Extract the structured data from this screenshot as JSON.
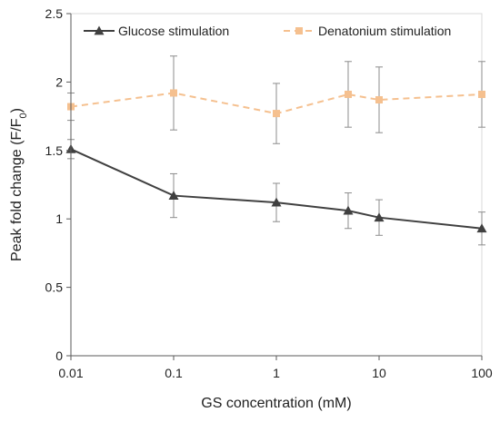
{
  "chart_data": {
    "type": "line",
    "title": "",
    "xlabel": "GS concentration (mM)",
    "ylabel": "Peak fold change (F/F",
    "ylabel_subscript": "0",
    "ylabel_suffix": ")",
    "x_scale": "log",
    "xlim": [
      0.01,
      100
    ],
    "ylim": [
      0,
      2.5
    ],
    "x_ticks": [
      0.01,
      0.1,
      1,
      10,
      100
    ],
    "x_tick_labels": [
      "0.01",
      "0.1",
      "1",
      "10",
      "100"
    ],
    "y_ticks": [
      0,
      0.5,
      1,
      1.5,
      2,
      2.5
    ],
    "y_tick_labels": [
      "0",
      "0.5",
      "1",
      "1.5",
      "2",
      "2.5"
    ],
    "grid": false,
    "legend_position": "top",
    "series": [
      {
        "name": "Glucose stimulation",
        "color": "#404040",
        "marker": "triangle",
        "line_style": "solid",
        "x": [
          0.01,
          0.1,
          1,
          5,
          10,
          100
        ],
        "y": [
          1.51,
          1.17,
          1.12,
          1.06,
          1.01,
          0.93
        ],
        "error": [
          0.07,
          0.16,
          0.14,
          0.13,
          0.13,
          0.12
        ]
      },
      {
        "name": "Denatonium stimulation",
        "color": "#f5c08f",
        "marker": "square",
        "line_style": "dashed",
        "x": [
          0.01,
          0.1,
          1,
          5,
          10,
          100
        ],
        "y": [
          1.82,
          1.92,
          1.77,
          1.91,
          1.87,
          1.91
        ],
        "error": [
          0.1,
          0.27,
          0.22,
          0.24,
          0.24,
          0.24
        ]
      }
    ]
  }
}
